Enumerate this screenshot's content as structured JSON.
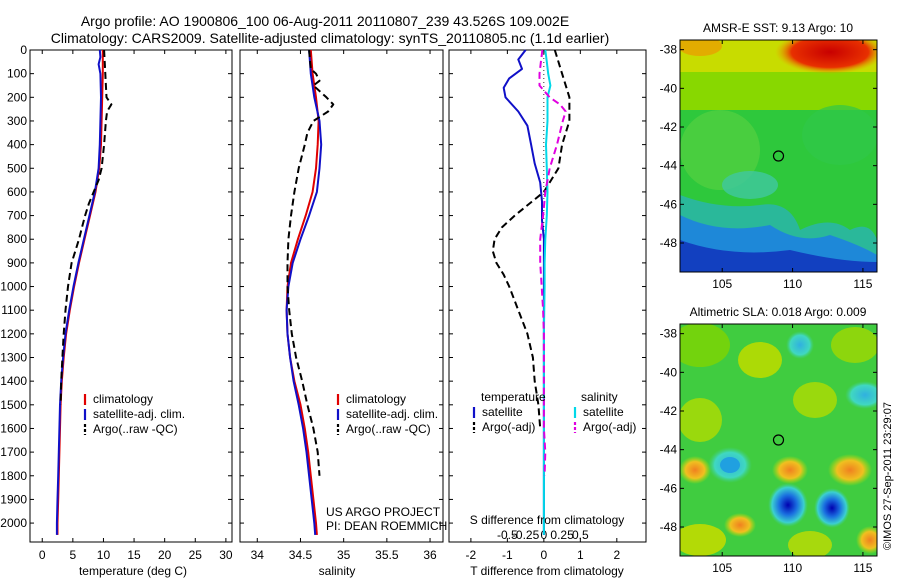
{
  "header": {
    "line1": "Argo profile: AO 1900806_100 06-Aug-2011 20110807_239 43.526S 109.002E",
    "line2": "Climatology: CARS2009. Satellite-adjusted climatology: synTS_20110805.nc (1.1d earlier)"
  },
  "colors": {
    "climatology": "#e00000",
    "satellite": "#1010c8",
    "argo": "#000000",
    "sal_satellite": "#00d8e8",
    "sal_argo": "#e000e0"
  },
  "depth_axis": {
    "ylim": [
      2080,
      0
    ],
    "ticks": [
      0,
      100,
      200,
      300,
      400,
      500,
      600,
      700,
      800,
      900,
      1000,
      1100,
      1200,
      1300,
      1400,
      1500,
      1600,
      1700,
      1800,
      1900,
      2000
    ]
  },
  "chart_data": [
    {
      "type": "line",
      "id": "temperature",
      "xlabel": "temperature (deg C)",
      "xlim": [
        -2,
        31
      ],
      "xticks": [
        0,
        5,
        10,
        15,
        20,
        25,
        30
      ],
      "legend": [
        "climatology",
        "satellite-adj. clim.",
        "Argo(..raw -QC)"
      ],
      "series": [
        {
          "name": "climatology",
          "depth": [
            0,
            100,
            200,
            300,
            400,
            500,
            600,
            700,
            800,
            900,
            1000,
            1100,
            1200,
            1300,
            1400,
            1500,
            1600,
            1700,
            1800,
            1900,
            2000,
            2050
          ],
          "values": [
            9.9,
            9.9,
            9.8,
            9.7,
            9.6,
            9.3,
            8.7,
            7.8,
            6.9,
            6.0,
            5.2,
            4.5,
            3.9,
            3.5,
            3.2,
            3.0,
            2.9,
            2.8,
            2.7,
            2.6,
            2.5,
            2.5
          ]
        },
        {
          "name": "satellite-adj. clim.",
          "depth": [
            0,
            30,
            60,
            100,
            200,
            300,
            400,
            500,
            600,
            700,
            800,
            900,
            1000,
            1100,
            1200,
            1300,
            1400,
            1500,
            1600,
            1700,
            1800,
            1900,
            2000,
            2050
          ],
          "values": [
            9.4,
            9.5,
            9.2,
            9.5,
            9.6,
            9.5,
            9.4,
            9.2,
            8.6,
            7.7,
            6.8,
            5.9,
            5.1,
            4.4,
            3.8,
            3.4,
            3.1,
            2.9,
            2.8,
            2.7,
            2.6,
            2.5,
            2.4,
            2.4
          ]
        },
        {
          "name": "Argo(..raw -QC)",
          "depth": [
            0,
            50,
            100,
            150,
            200,
            230,
            260,
            300,
            400,
            500,
            550,
            600,
            650,
            700,
            750,
            800,
            850,
            900,
            1000,
            1100,
            1200,
            1300,
            1400,
            1500
          ],
          "values": [
            10.1,
            10.2,
            10.3,
            10.4,
            10.5,
            11.3,
            10.6,
            10.4,
            10.1,
            9.7,
            9.2,
            8.4,
            7.6,
            7.0,
            6.5,
            6.0,
            5.4,
            4.8,
            4.2,
            3.8,
            3.5,
            3.3,
            3.1,
            3.0
          ]
        }
      ]
    },
    {
      "type": "line",
      "id": "salinity",
      "xlabel": "salinity",
      "xlim": [
        33.8,
        36.15
      ],
      "xticks": [
        34,
        34.5,
        35,
        35.5,
        36
      ],
      "legend": [
        "climatology",
        "satellite-adj. clim.",
        "Argo(..raw -QC)"
      ],
      "annotation": [
        "US ARGO PROJECT",
        "PI: DEAN ROEMMICH"
      ],
      "series": [
        {
          "name": "climatology",
          "depth": [
            0,
            100,
            200,
            300,
            400,
            500,
            600,
            700,
            800,
            900,
            1000,
            1100,
            1200,
            1300,
            1400,
            1500,
            1600,
            1700,
            1800,
            1900,
            2000,
            2050
          ],
          "values": [
            34.62,
            34.64,
            34.68,
            34.71,
            34.7,
            34.68,
            34.64,
            34.56,
            34.47,
            34.39,
            34.35,
            34.34,
            34.35,
            34.38,
            34.43,
            34.5,
            34.55,
            34.59,
            34.62,
            34.65,
            34.68,
            34.69
          ]
        },
        {
          "name": "satellite-adj. clim.",
          "depth": [
            0,
            100,
            200,
            300,
            400,
            500,
            600,
            700,
            800,
            900,
            1000,
            1100,
            1200,
            1300,
            1400,
            1500,
            1600,
            1700,
            1800,
            1900,
            2000,
            2050
          ],
          "values": [
            34.6,
            34.62,
            34.66,
            34.72,
            34.74,
            34.72,
            34.69,
            34.6,
            34.5,
            34.41,
            34.36,
            34.34,
            34.35,
            34.38,
            34.42,
            34.48,
            34.53,
            34.57,
            34.6,
            34.63,
            34.66,
            34.67
          ]
        },
        {
          "name": "Argo(..raw -QC)",
          "depth": [
            0,
            80,
            100,
            130,
            150,
            200,
            230,
            260,
            300,
            350,
            400,
            500,
            600,
            700,
            800,
            900,
            1000,
            1100,
            1200,
            1300,
            1400,
            1500,
            1600,
            1700,
            1800
          ],
          "values": [
            34.6,
            34.62,
            34.68,
            34.72,
            34.65,
            34.8,
            34.88,
            34.82,
            34.65,
            34.58,
            34.55,
            34.48,
            34.43,
            34.39,
            34.36,
            34.35,
            34.35,
            34.37,
            34.4,
            34.45,
            34.52,
            34.58,
            34.65,
            34.7,
            34.72
          ]
        }
      ]
    },
    {
      "type": "line",
      "id": "difference",
      "xlabel": "T difference from climatology",
      "xlim": [
        -2.6,
        2.8
      ],
      "xticks": [
        -2,
        -1,
        0,
        1,
        2
      ],
      "top_label": "S difference from climatology",
      "top_ticks": [
        "-0.5",
        "-0.25",
        "0",
        "0.25",
        "0.5"
      ],
      "legend_left_title": "temperature",
      "legend_right_title": "salinity",
      "legend": [
        "satellite",
        "Argo(-adj)",
        "satellite",
        "Argo(-adj)"
      ],
      "series": [
        {
          "name": "satellite",
          "quantity": "T difference",
          "depth": [
            0,
            40,
            80,
            120,
            160,
            200,
            260,
            320,
            400,
            480,
            560,
            640,
            720,
            800,
            900,
            1000,
            1200,
            1400,
            1600,
            1800,
            2050
          ],
          "values": [
            -0.5,
            -0.7,
            -0.6,
            -0.95,
            -1.1,
            -1.05,
            -0.7,
            -0.45,
            -0.35,
            -0.25,
            -0.1,
            -0.05,
            -0.05,
            0.0,
            0.0,
            0.0,
            0.0,
            0.0,
            0.0,
            0.0,
            0.0
          ]
        },
        {
          "name": "Argo(-adj)",
          "quantity": "T difference",
          "depth": [
            0,
            100,
            200,
            300,
            400,
            500,
            600,
            700,
            750,
            800,
            850,
            900,
            950,
            1000,
            1100,
            1200,
            1300,
            1400,
            1500,
            1600
          ],
          "values": [
            0.3,
            0.5,
            0.7,
            0.7,
            0.5,
            0.4,
            0.0,
            -0.8,
            -1.15,
            -1.35,
            -1.4,
            -1.3,
            -1.1,
            -0.95,
            -0.7,
            -0.45,
            -0.3,
            -0.25,
            -0.15,
            -0.1
          ]
        },
        {
          "name": "satellite",
          "quantity": "S difference",
          "depth": [
            0,
            50,
            100,
            150,
            200,
            300,
            400,
            500,
            600,
            700,
            800,
            900,
            1000,
            1200,
            1400,
            1600,
            1800,
            2050
          ],
          "values": [
            0.02,
            0.04,
            0.06,
            0.09,
            0.05,
            0.05,
            0.03,
            0.04,
            0.05,
            0.04,
            0.02,
            0.01,
            0.01,
            0.0,
            0.0,
            0.0,
            0.0,
            0.0
          ]
        },
        {
          "name": "Argo(-adj)",
          "quantity": "S difference",
          "depth": [
            0,
            50,
            100,
            150,
            200,
            230,
            260,
            300,
            400,
            500,
            600,
            700,
            800,
            900,
            1000,
            1100,
            1200,
            1300,
            1400,
            1500,
            1600,
            1700,
            1800
          ],
          "values": [
            -0.02,
            -0.04,
            -0.06,
            -0.06,
            0.08,
            0.22,
            0.3,
            0.26,
            0.18,
            0.08,
            0.02,
            -0.01,
            -0.05,
            -0.05,
            -0.03,
            -0.01,
            0.0,
            0.0,
            0.0,
            0.0,
            0.0,
            0.02,
            0.01
          ]
        }
      ]
    },
    {
      "type": "heatmap",
      "id": "sst-map",
      "title": "AMSR-E SST: 9.13 Argo: 10",
      "xticks": [
        105,
        110,
        115
      ],
      "yticks": [
        -38,
        -40,
        -42,
        -44,
        -46,
        -48
      ],
      "xlim": [
        102,
        116
      ],
      "ylim": [
        -49.5,
        -37.5
      ],
      "marker": {
        "lon": 109.0,
        "lat": -43.5
      }
    },
    {
      "type": "heatmap",
      "id": "sla-map",
      "title": "Altimetric SLA: 0.018 Argo: 0.009",
      "xticks": [
        105,
        110,
        115
      ],
      "yticks": [
        -38,
        -40,
        -42,
        -44,
        -46,
        -48
      ],
      "xlim": [
        102,
        116
      ],
      "ylim": [
        -49.5,
        -37.5
      ],
      "marker": {
        "lon": 109.0,
        "lat": -43.5
      }
    }
  ],
  "credit": "©IMOS 27-Sep-2011 23:29:07"
}
